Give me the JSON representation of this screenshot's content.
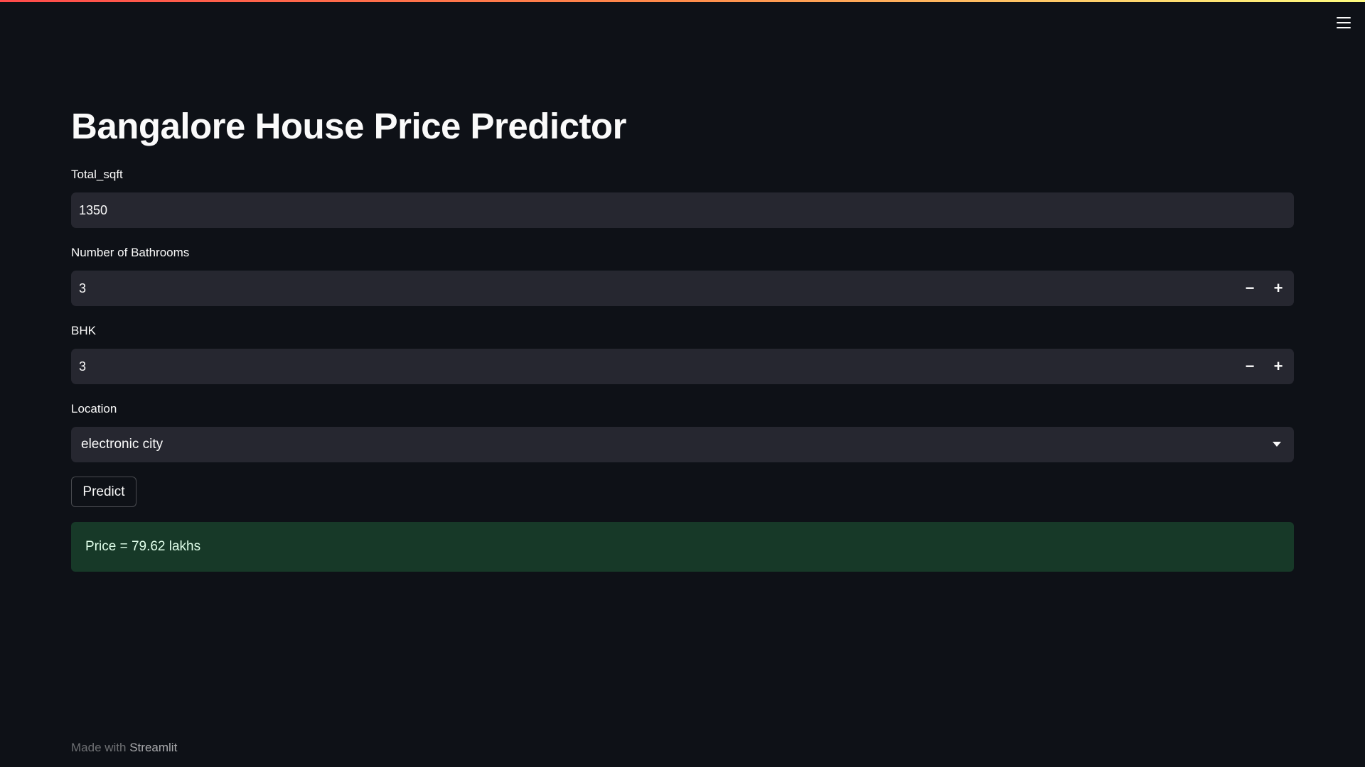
{
  "app": {
    "title": "Bangalore House Price Predictor"
  },
  "form": {
    "total_sqft": {
      "label": "Total_sqft",
      "value": "1350"
    },
    "bathrooms": {
      "label": "Number of Bathrooms",
      "value": "3",
      "minus_icon": "minus-icon",
      "plus_icon": "plus-icon"
    },
    "bhk": {
      "label": "BHK",
      "value": "3",
      "minus_icon": "minus-icon",
      "plus_icon": "plus-icon"
    },
    "location": {
      "label": "Location",
      "value": "electronic city",
      "icon": "chevron-down-icon"
    },
    "predict_label": "Predict"
  },
  "result": {
    "text": "Price = 79.62 lakhs"
  },
  "footer": {
    "prefix": "Made with",
    "link": "Streamlit"
  },
  "colors": {
    "background": "#0e1117",
    "input_bg": "#262730",
    "success_bg": "#173928",
    "accent_gradient_start": "#ff4b4b",
    "accent_gradient_end": "#fffd80"
  }
}
